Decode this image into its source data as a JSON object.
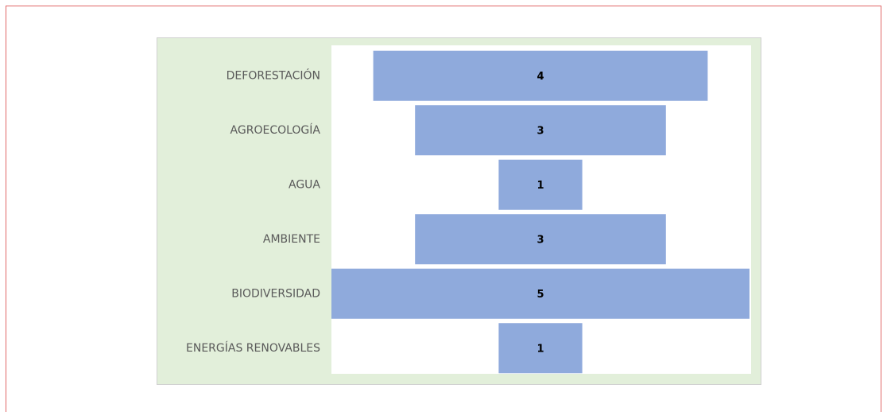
{
  "chart_data": {
    "type": "funnel",
    "color": "#8faadc",
    "categories": [
      "DEFORESTACIÓN",
      "AGROECOLOGÍA",
      "AGUA",
      "AMBIENTE",
      "BIODIVERSIDAD",
      "ENERGÍAS RENOVABLES"
    ],
    "values": [
      4,
      3,
      1,
      3,
      5,
      1
    ]
  }
}
